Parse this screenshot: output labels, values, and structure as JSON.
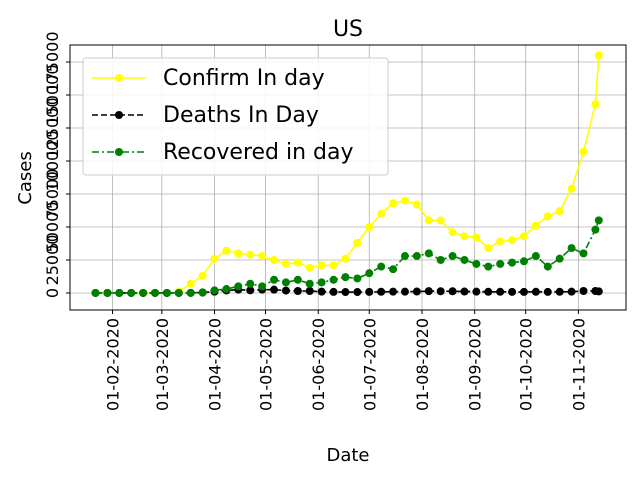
{
  "chart_data": {
    "type": "line",
    "title": "US",
    "x_label": "Date",
    "y_label": "Cases",
    "x": [
      "2020-01-22",
      "2020-01-29",
      "2020-02-05",
      "2020-02-12",
      "2020-02-19",
      "2020-02-26",
      "2020-03-04",
      "2020-03-11",
      "2020-03-18",
      "2020-03-25",
      "2020-04-01",
      "2020-04-08",
      "2020-04-15",
      "2020-04-22",
      "2020-04-29",
      "2020-05-06",
      "2020-05-13",
      "2020-05-20",
      "2020-05-27",
      "2020-06-03",
      "2020-06-10",
      "2020-06-17",
      "2020-06-24",
      "2020-07-01",
      "2020-07-08",
      "2020-07-15",
      "2020-07-22",
      "2020-07-29",
      "2020-08-05",
      "2020-08-12",
      "2020-08-19",
      "2020-08-26",
      "2020-09-02",
      "2020-09-09",
      "2020-09-16",
      "2020-09-23",
      "2020-09-30",
      "2020-10-07",
      "2020-10-14",
      "2020-10-21",
      "2020-10-28",
      "2020-11-04",
      "2020-11-11",
      "2020-11-13"
    ],
    "series": [
      {
        "name": "Confirm In day",
        "color": "#ffff00",
        "linestyle": "solid",
        "values": [
          0,
          0,
          0,
          0,
          0,
          0,
          0,
          1000,
          7000,
          13000,
          26000,
          32000,
          30000,
          29000,
          28000,
          25000,
          22000,
          23000,
          19000,
          21000,
          21000,
          26000,
          38000,
          50000,
          60000,
          68000,
          70000,
          67000,
          55000,
          55000,
          46000,
          43000,
          42000,
          34000,
          39000,
          40000,
          43000,
          51000,
          58000,
          62000,
          79000,
          107000,
          143000,
          180000
        ]
      },
      {
        "name": "Deaths In Day",
        "color": "#000000",
        "linestyle": "dashed",
        "values": [
          0,
          0,
          0,
          0,
          0,
          0,
          0,
          0,
          100,
          300,
          1000,
          1900,
          2500,
          2000,
          2500,
          2500,
          1800,
          1500,
          1500,
          1000,
          800,
          700,
          700,
          800,
          900,
          1000,
          1000,
          1100,
          1400,
          1300,
          1300,
          1100,
          1000,
          900,
          900,
          800,
          800,
          900,
          800,
          900,
          1000,
          1500,
          1500,
          1200
        ]
      },
      {
        "name": "Recovered in day",
        "color": "#008000",
        "linestyle": "dashdot",
        "values": [
          0,
          0,
          0,
          0,
          0,
          0,
          0,
          0,
          0,
          500,
          2000,
          3000,
          5000,
          7000,
          5000,
          10000,
          8000,
          10000,
          7000,
          8000,
          10000,
          12000,
          11000,
          15000,
          20000,
          18000,
          28000,
          28000,
          30000,
          25000,
          28000,
          25000,
          22000,
          20000,
          22000,
          23000,
          24000,
          28000,
          20000,
          26000,
          34000,
          30000,
          48000,
          55000
        ]
      }
    ],
    "xlim": [
      "2020-01-07",
      "2020-11-29"
    ],
    "xticks": [
      {
        "value": "2020-02-01",
        "label": "01-02-2020"
      },
      {
        "value": "2020-03-01",
        "label": "01-03-2020"
      },
      {
        "value": "2020-04-01",
        "label": "01-04-2020"
      },
      {
        "value": "2020-05-01",
        "label": "01-05-2020"
      },
      {
        "value": "2020-06-01",
        "label": "01-06-2020"
      },
      {
        "value": "2020-07-01",
        "label": "01-07-2020"
      },
      {
        "value": "2020-08-01",
        "label": "01-08-2020"
      },
      {
        "value": "2020-09-01",
        "label": "01-09-2020"
      },
      {
        "value": "2020-10-01",
        "label": "01-10-2020"
      },
      {
        "value": "2020-11-01",
        "label": "01-11-2020"
      }
    ],
    "ylim": [
      -12900,
      187900
    ],
    "yticks": [
      0,
      25000,
      50000,
      75000,
      100000,
      125000,
      150000,
      175000
    ],
    "grid": true,
    "legend": "upper left"
  }
}
